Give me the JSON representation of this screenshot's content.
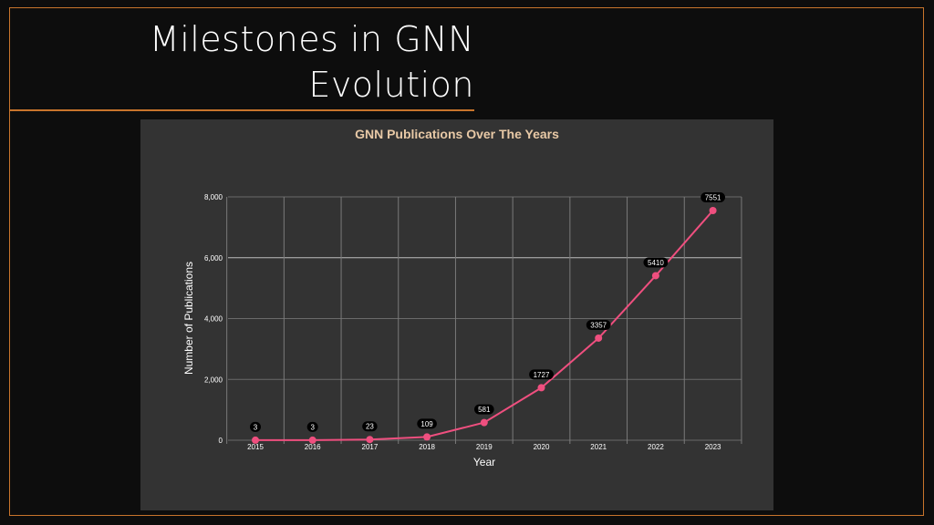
{
  "slide": {
    "title": "Milestones in GNN Evolution",
    "accent_color": "#c8742c"
  },
  "chart_data": {
    "type": "line",
    "title": "GNN Publications Over The Years",
    "xlabel": "Year",
    "ylabel": "Number of Publications",
    "categories": [
      "2015",
      "2016",
      "2017",
      "2018",
      "2019",
      "2020",
      "2021",
      "2022",
      "2023"
    ],
    "values": [
      3,
      3,
      23,
      109,
      581,
      1727,
      3357,
      5410,
      7551
    ],
    "ylim": [
      0,
      8000
    ],
    "yticks": [
      0,
      2000,
      4000,
      6000,
      8000
    ],
    "ytick_labels": [
      "0",
      "2,000",
      "4,000",
      "6,000",
      "8,000"
    ],
    "grid": true,
    "line_color": "#ef4f7f",
    "title_color": "#e8c9a6"
  }
}
